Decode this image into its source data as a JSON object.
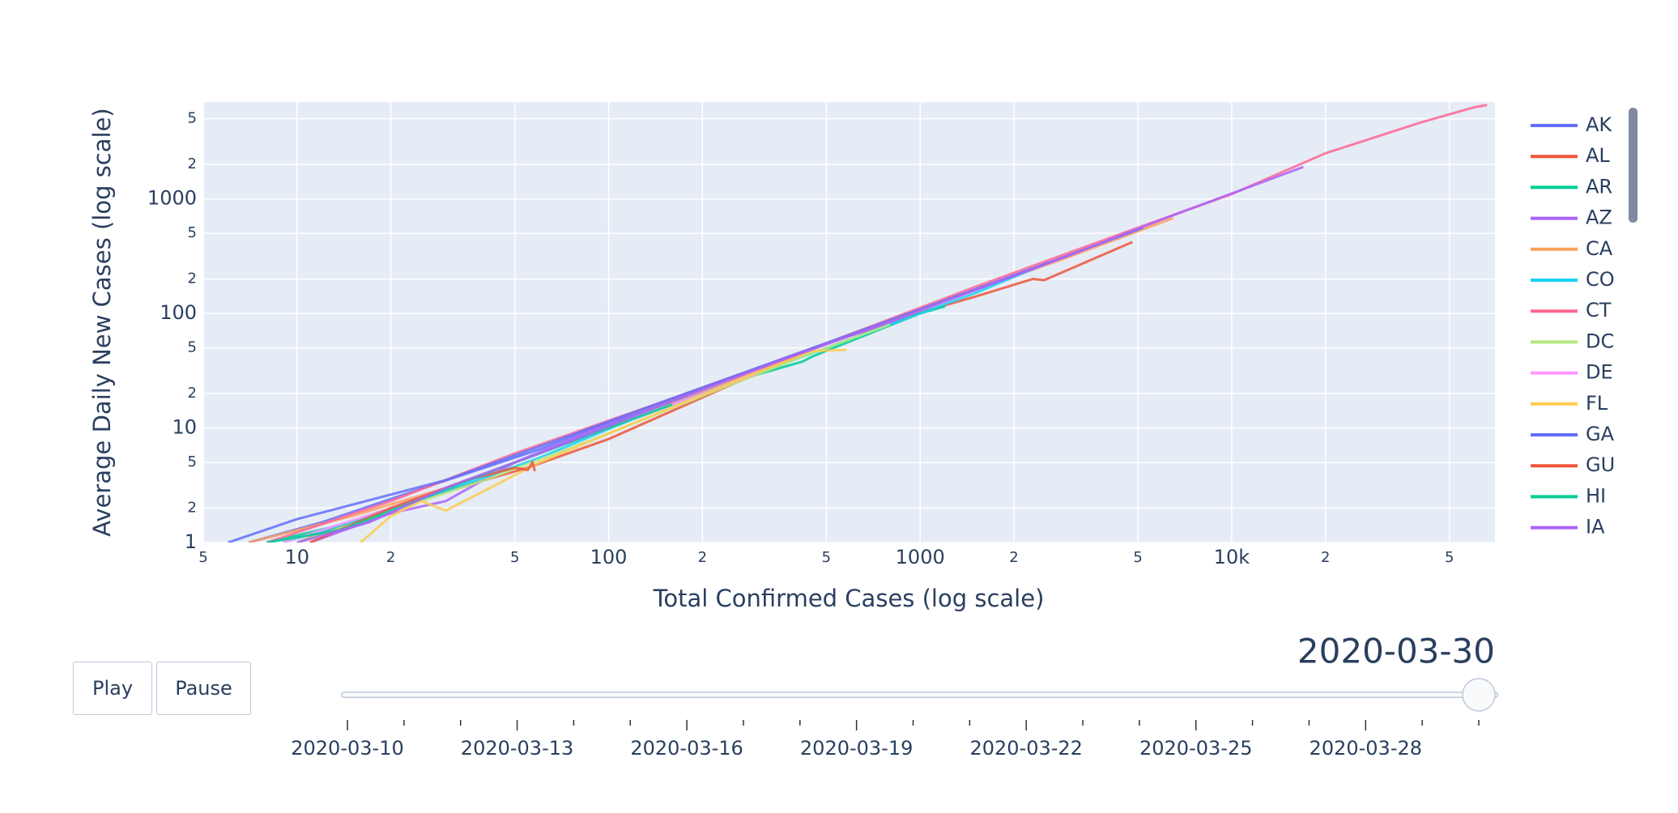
{
  "chart_data": {
    "type": "line",
    "x_label": "Total Confirmed Cases (log scale)",
    "y_label": "Average Daily New Cases (log scale)",
    "xscale": "log",
    "yscale": "log",
    "grid": true,
    "legend_position": "right",
    "xlim": [
      5,
      70000
    ],
    "ylim": [
      1,
      7000
    ],
    "xticks": [
      {
        "value": 5,
        "label": "5"
      },
      10,
      {
        "value": 20,
        "label": "2"
      },
      {
        "value": 50,
        "label": "5"
      },
      100,
      {
        "value": 200,
        "label": "2"
      },
      {
        "value": 500,
        "label": "5"
      },
      1000,
      {
        "value": 2000,
        "label": "2"
      },
      {
        "value": 5000,
        "label": "5"
      },
      {
        "value": 10000,
        "label": "10k"
      },
      {
        "value": 20000,
        "label": "2"
      },
      {
        "value": 50000,
        "label": "5"
      }
    ],
    "yticks": [
      1,
      {
        "value": 2,
        "label": "2"
      },
      {
        "value": 5,
        "label": "5"
      },
      10,
      {
        "value": 20,
        "label": "2"
      },
      {
        "value": 50,
        "label": "5"
      },
      100,
      {
        "value": 200,
        "label": "2"
      },
      {
        "value": 500,
        "label": "5"
      },
      1000,
      {
        "value": 2000,
        "label": "2"
      },
      {
        "value": 5000,
        "label": "5"
      }
    ],
    "series": [
      {
        "name": "AK",
        "color": "#636efa",
        "x": [
          7,
          12,
          20,
          35,
          60,
          90,
          120
        ],
        "values": [
          1,
          1.5,
          2.4,
          4,
          6.5,
          10,
          13
        ]
      },
      {
        "name": "AL",
        "color": "#EF553B",
        "x": [
          10,
          18,
          30,
          55,
          100,
          300,
          500,
          1100,
          1500,
          2300,
          2500,
          4800
        ],
        "values": [
          1,
          1.8,
          2.8,
          4.5,
          8,
          30,
          55,
          110,
          140,
          200,
          195,
          420
        ]
      },
      {
        "name": "AR",
        "color": "#00cc96",
        "x": [
          8,
          15,
          30,
          60,
          130,
          270,
          420,
          450,
          1000,
          1200
        ],
        "values": [
          1,
          1.5,
          3,
          6,
          14,
          27,
          38,
          42,
          100,
          115
        ]
      },
      {
        "name": "AZ",
        "color": "#ab63fa",
        "x": [
          11,
          20,
          30,
          50,
          100,
          200,
          500,
          900
        ],
        "values": [
          1,
          1.8,
          2.3,
          5,
          11,
          22,
          55,
          90
        ]
      },
      {
        "name": "CA",
        "color": "#FFA15A",
        "x": [
          7,
          15,
          30,
          60,
          120,
          300,
          600,
          1200,
          2800,
          6500
        ],
        "values": [
          1,
          1.7,
          3,
          6,
          12,
          32,
          65,
          130,
          290,
          680
        ]
      },
      {
        "name": "CO",
        "color": "#19d3f3",
        "x": [
          9,
          15,
          30,
          60,
          120,
          300,
          700,
          1500,
          2600
        ],
        "values": [
          1,
          1.5,
          2.8,
          5.5,
          12,
          30,
          70,
          150,
          280
        ]
      },
      {
        "name": "CT",
        "color": "#FF6692",
        "x": [
          8,
          20,
          50,
          150,
          500,
          1500,
          5000,
          10000,
          20000,
          40000,
          60000,
          66000
        ],
        "values": [
          1,
          2.3,
          6,
          17,
          55,
          170,
          560,
          1100,
          2500,
          4600,
          6300,
          6600
        ]
      },
      {
        "name": "DC",
        "color": "#B6E880",
        "x": [
          10,
          18,
          40,
          90,
          200,
          400,
          800
        ],
        "values": [
          1,
          1.7,
          3.5,
          8,
          19,
          40,
          80
        ]
      },
      {
        "name": "DE",
        "color": "#FF97FF",
        "x": [
          9,
          20,
          40,
          80,
          150,
          300
        ],
        "values": [
          1,
          2,
          4,
          8,
          15,
          30
        ]
      },
      {
        "name": "FL",
        "color": "#FECB52",
        "x": [
          16,
          20,
          25,
          30,
          60,
          120,
          250,
          450,
          580
        ],
        "values": [
          1,
          1.7,
          2.3,
          1.9,
          5,
          11,
          25,
          47,
          48
        ]
      },
      {
        "name": "GA",
        "color": "#636efa",
        "x": [
          6,
          10,
          30,
          70,
          150,
          500,
          1200,
          2800,
          5200
        ],
        "values": [
          1,
          1.6,
          3.5,
          8,
          17,
          55,
          130,
          300,
          560
        ]
      },
      {
        "name": "GU",
        "color": "#EF553B",
        "x": [
          11,
          20,
          35,
          50,
          55,
          57,
          58
        ],
        "values": [
          1,
          2,
          3.5,
          4.5,
          4.3,
          5,
          4.2
        ]
      },
      {
        "name": "HI",
        "color": "#00cc96",
        "x": [
          8,
          14,
          25,
          50,
          90,
          160
        ],
        "values": [
          1,
          1.3,
          2.4,
          5,
          9,
          16
        ]
      },
      {
        "name": "IA",
        "color": "#ab63fa",
        "x": [
          10,
          17,
          30,
          60,
          150,
          350,
          900,
          3000,
          6500,
          17000
        ],
        "values": [
          1,
          1.5,
          3,
          6,
          16,
          38,
          95,
          320,
          720,
          1900
        ]
      }
    ]
  },
  "controls": {
    "buttons": [
      "Play",
      "Pause"
    ],
    "current_label": "2020-03-30",
    "slider_ticks": [
      "2020-03-10",
      null,
      null,
      "2020-03-13",
      null,
      null,
      "2020-03-16",
      null,
      null,
      "2020-03-19",
      null,
      null,
      "2020-03-22",
      null,
      null,
      "2020-03-25",
      null,
      null,
      "2020-03-28",
      null,
      null
    ]
  }
}
